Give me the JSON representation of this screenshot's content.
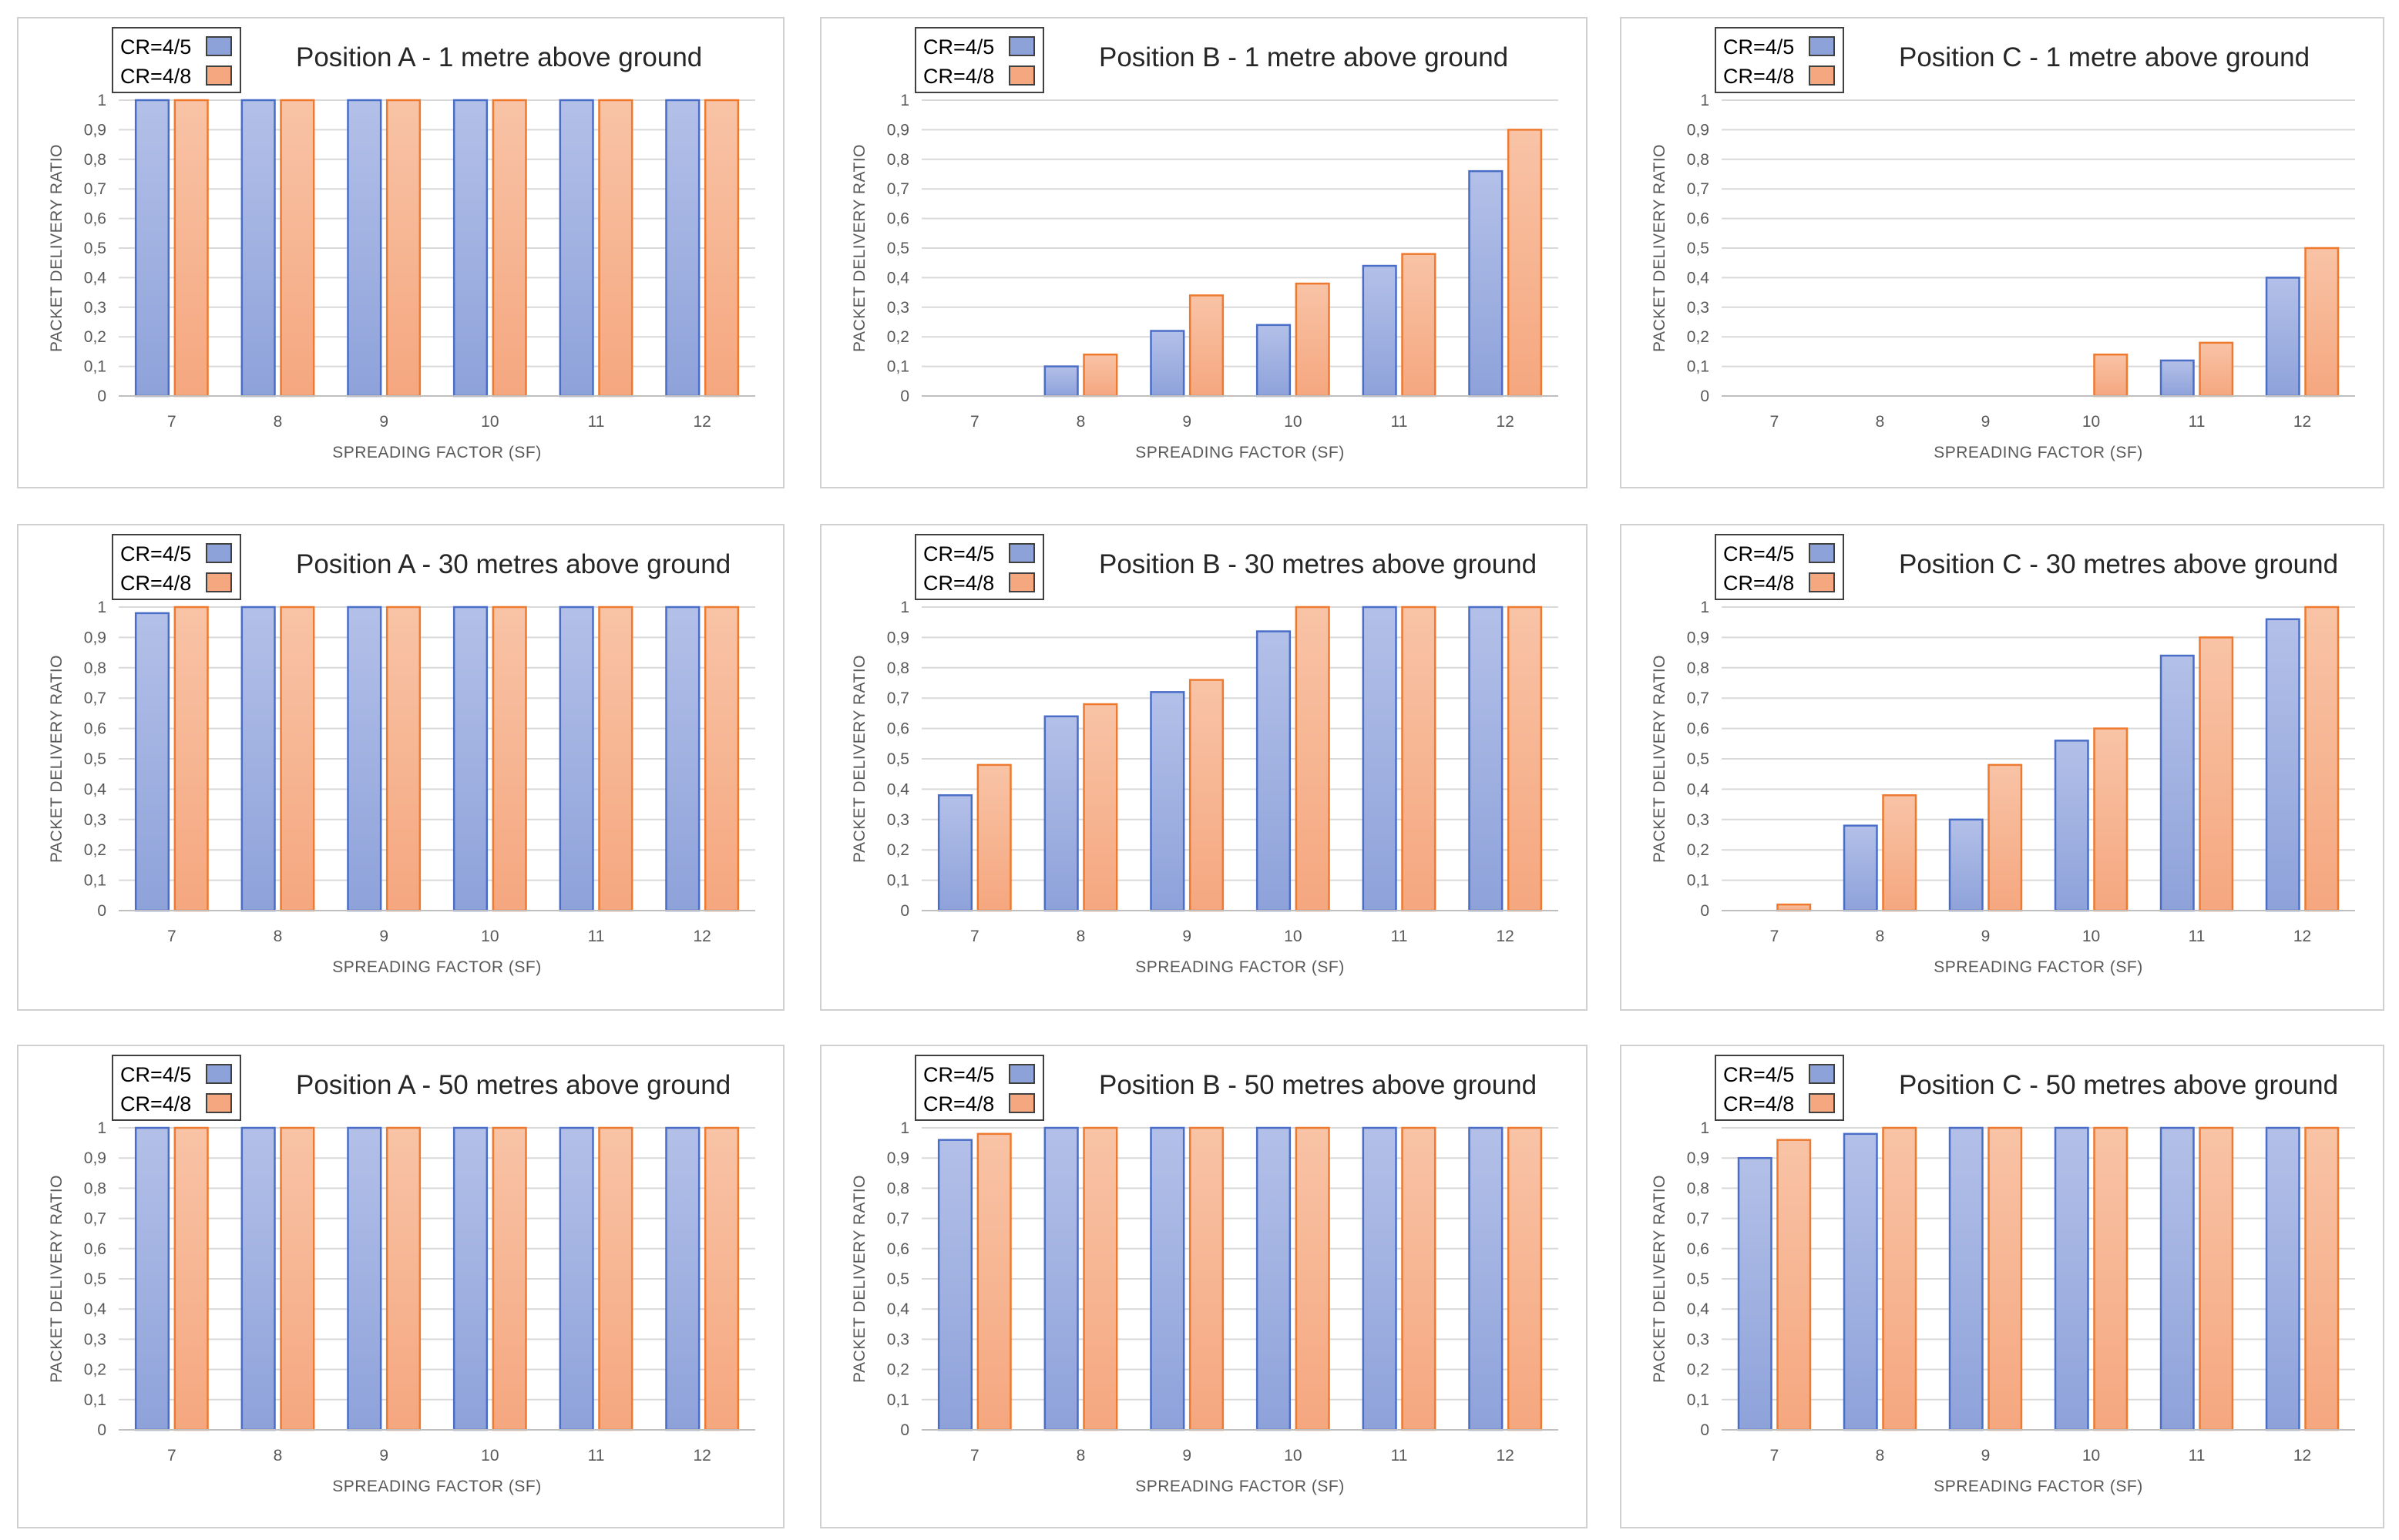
{
  "figure": {
    "panel_count": 9
  },
  "chart_data": [
    {
      "type": "bar",
      "title": "Position A - 1 metre above ground",
      "xlabel": "SPREADING FACTOR (SF)",
      "ylabel": "PACKET DELIVERY RATIO",
      "categories": [
        "7",
        "8",
        "9",
        "10",
        "11",
        "12"
      ],
      "ylim": [
        0,
        1
      ],
      "yticks": [
        "0",
        "0,1",
        "0,2",
        "0,3",
        "0,4",
        "0,5",
        "0,6",
        "0,7",
        "0,8",
        "0,9",
        "1"
      ],
      "grid": true,
      "legend_position": "top-left",
      "series": [
        {
          "name": "CR=4/5",
          "color": "#8ea2da",
          "values": [
            1,
            1,
            1,
            1,
            1,
            1
          ]
        },
        {
          "name": "CR=4/8",
          "color": "#f5a77f",
          "values": [
            1,
            1,
            1,
            1,
            1,
            1
          ]
        }
      ]
    },
    {
      "type": "bar",
      "title": "Position B - 1 metre above ground",
      "xlabel": "SPREADING FACTOR (SF)",
      "ylabel": "PACKET DELIVERY RATIO",
      "categories": [
        "7",
        "8",
        "9",
        "10",
        "11",
        "12"
      ],
      "ylim": [
        0,
        1
      ],
      "yticks": [
        "0",
        "0,1",
        "0,2",
        "0,3",
        "0,4",
        "0,5",
        "0,6",
        "0,7",
        "0,8",
        "0,9",
        "1"
      ],
      "grid": true,
      "legend_position": "top-left",
      "series": [
        {
          "name": "CR=4/5",
          "color": "#8ea2da",
          "values": [
            0,
            0.1,
            0.22,
            0.24,
            0.44,
            0.76
          ]
        },
        {
          "name": "CR=4/8",
          "color": "#f5a77f",
          "values": [
            0,
            0.14,
            0.34,
            0.38,
            0.48,
            0.9
          ]
        }
      ]
    },
    {
      "type": "bar",
      "title": "Position C - 1 metre above ground",
      "xlabel": "SPREADING FACTOR (SF)",
      "ylabel": "PACKET DELIVERY RATIO",
      "categories": [
        "7",
        "8",
        "9",
        "10",
        "11",
        "12"
      ],
      "ylim": [
        0,
        1
      ],
      "yticks": [
        "0",
        "0,1",
        "0,2",
        "0,3",
        "0,4",
        "0,5",
        "0,6",
        "0,7",
        "0,8",
        "0,9",
        "1"
      ],
      "grid": true,
      "legend_position": "top-left",
      "series": [
        {
          "name": "CR=4/5",
          "color": "#8ea2da",
          "values": [
            0,
            0,
            0,
            0,
            0.12,
            0.4
          ]
        },
        {
          "name": "CR=4/8",
          "color": "#f5a77f",
          "values": [
            0,
            0,
            0,
            0.14,
            0.18,
            0.5
          ]
        }
      ]
    },
    {
      "type": "bar",
      "title": "Position A - 30 metres above ground",
      "xlabel": "SPREADING FACTOR (SF)",
      "ylabel": "PACKET DELIVERY RATIO",
      "categories": [
        "7",
        "8",
        "9",
        "10",
        "11",
        "12"
      ],
      "ylim": [
        0,
        1
      ],
      "yticks": [
        "0",
        "0,1",
        "0,2",
        "0,3",
        "0,4",
        "0,5",
        "0,6",
        "0,7",
        "0,8",
        "0,9",
        "1"
      ],
      "grid": true,
      "legend_position": "top-left",
      "series": [
        {
          "name": "CR=4/5",
          "color": "#8ea2da",
          "values": [
            0.98,
            1,
            1,
            1,
            1,
            1
          ]
        },
        {
          "name": "CR=4/8",
          "color": "#f5a77f",
          "values": [
            1,
            1,
            1,
            1,
            1,
            1
          ]
        }
      ]
    },
    {
      "type": "bar",
      "title": "Position B - 30 metres above ground",
      "xlabel": "SPREADING FACTOR (SF)",
      "ylabel": "PACKET DELIVERY RATIO",
      "categories": [
        "7",
        "8",
        "9",
        "10",
        "11",
        "12"
      ],
      "ylim": [
        0,
        1
      ],
      "yticks": [
        "0",
        "0,1",
        "0,2",
        "0,3",
        "0,4",
        "0,5",
        "0,6",
        "0,7",
        "0,8",
        "0,9",
        "1"
      ],
      "grid": true,
      "legend_position": "top-left",
      "series": [
        {
          "name": "CR=4/5",
          "color": "#8ea2da",
          "values": [
            0.38,
            0.64,
            0.72,
            0.92,
            1,
            1
          ]
        },
        {
          "name": "CR=4/8",
          "color": "#f5a77f",
          "values": [
            0.48,
            0.68,
            0.76,
            1,
            1,
            1
          ]
        }
      ]
    },
    {
      "type": "bar",
      "title": "Position C - 30 metres above ground",
      "xlabel": "SPREADING FACTOR (SF)",
      "ylabel": "PACKET DELIVERY RATIO",
      "categories": [
        "7",
        "8",
        "9",
        "10",
        "11",
        "12"
      ],
      "ylim": [
        0,
        1
      ],
      "yticks": [
        "0",
        "0,1",
        "0,2",
        "0,3",
        "0,4",
        "0,5",
        "0,6",
        "0,7",
        "0,8",
        "0,9",
        "1"
      ],
      "grid": true,
      "legend_position": "top-left",
      "series": [
        {
          "name": "CR=4/5",
          "color": "#8ea2da",
          "values": [
            0,
            0.28,
            0.3,
            0.56,
            0.84,
            0.96
          ]
        },
        {
          "name": "CR=4/8",
          "color": "#f5a77f",
          "values": [
            0.02,
            0.38,
            0.48,
            0.6,
            0.9,
            1
          ]
        }
      ]
    },
    {
      "type": "bar",
      "title": "Position A - 50 metres above ground",
      "xlabel": "SPREADING FACTOR (SF)",
      "ylabel": "PACKET DELIVERY RATIO",
      "categories": [
        "7",
        "8",
        "9",
        "10",
        "11",
        "12"
      ],
      "ylim": [
        0,
        1
      ],
      "yticks": [
        "0",
        "0,1",
        "0,2",
        "0,3",
        "0,4",
        "0,5",
        "0,6",
        "0,7",
        "0,8",
        "0,9",
        "1"
      ],
      "grid": true,
      "legend_position": "top-left",
      "series": [
        {
          "name": "CR=4/5",
          "color": "#8ea2da",
          "values": [
            1,
            1,
            1,
            1,
            1,
            1
          ]
        },
        {
          "name": "CR=4/8",
          "color": "#f5a77f",
          "values": [
            1,
            1,
            1,
            1,
            1,
            1
          ]
        }
      ]
    },
    {
      "type": "bar",
      "title": "Position B - 50 metres above ground",
      "xlabel": "SPREADING FACTOR (SF)",
      "ylabel": "PACKET DELIVERY RATIO",
      "categories": [
        "7",
        "8",
        "9",
        "10",
        "11",
        "12"
      ],
      "ylim": [
        0,
        1
      ],
      "yticks": [
        "0",
        "0,1",
        "0,2",
        "0,3",
        "0,4",
        "0,5",
        "0,6",
        "0,7",
        "0,8",
        "0,9",
        "1"
      ],
      "grid": true,
      "legend_position": "top-left",
      "series": [
        {
          "name": "CR=4/5",
          "color": "#8ea2da",
          "values": [
            0.96,
            1,
            1,
            1,
            1,
            1
          ]
        },
        {
          "name": "CR=4/8",
          "color": "#f5a77f",
          "values": [
            0.98,
            1,
            1,
            1,
            1,
            1
          ]
        }
      ]
    },
    {
      "type": "bar",
      "title": "Position C - 50 metres above ground",
      "xlabel": "SPREADING FACTOR (SF)",
      "ylabel": "PACKET DELIVERY RATIO",
      "categories": [
        "7",
        "8",
        "9",
        "10",
        "11",
        "12"
      ],
      "ylim": [
        0,
        1
      ],
      "yticks": [
        "0",
        "0,1",
        "0,2",
        "0,3",
        "0,4",
        "0,5",
        "0,6",
        "0,7",
        "0,8",
        "0,9",
        "1"
      ],
      "grid": true,
      "legend_position": "top-left",
      "series": [
        {
          "name": "CR=4/5",
          "color": "#8ea2da",
          "values": [
            0.9,
            0.98,
            1,
            1,
            1,
            1
          ]
        },
        {
          "name": "CR=4/8",
          "color": "#f5a77f",
          "values": [
            0.96,
            1,
            1,
            1,
            1,
            1
          ]
        }
      ]
    }
  ]
}
